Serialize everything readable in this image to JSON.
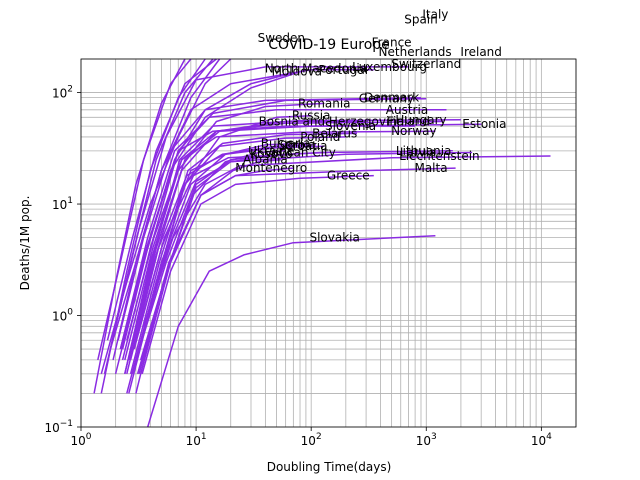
{
  "chart_data": {
    "type": "line",
    "title": "COVID-19  Europe",
    "xlabel": "Doubling Time(days)",
    "ylabel": "Deaths/1M pop.",
    "x_scale": "log",
    "y_scale": "log",
    "xlim": [
      1,
      20000
    ],
    "ylim": [
      0.1,
      200
    ],
    "grid": true,
    "line_color": "#8a2be2",
    "x_ticks": [
      {
        "value": 1,
        "base": "10",
        "exp": "0"
      },
      {
        "value": 10,
        "base": "10",
        "exp": "1"
      },
      {
        "value": 100,
        "base": "10",
        "exp": "2"
      },
      {
        "value": 1000,
        "base": "10",
        "exp": "3"
      },
      {
        "value": 10000,
        "base": "10",
        "exp": "4"
      }
    ],
    "y_ticks": [
      {
        "value": 0.1,
        "base": "10",
        "exp": "−1"
      },
      {
        "value": 1,
        "base": "10",
        "exp": "0"
      },
      {
        "value": 10,
        "base": "10",
        "exp": "1"
      },
      {
        "value": 100,
        "base": "10",
        "exp": "2"
      }
    ],
    "series": [
      {
        "name": "Sweden",
        "label_at": [
          55,
          310
        ],
        "points": [
          [
            1.5,
            0.3
          ],
          [
            2.5,
            2
          ],
          [
            4,
            10
          ],
          [
            7,
            40
          ],
          [
            12,
            120
          ],
          [
            20,
            200
          ]
        ]
      },
      {
        "name": "Italy",
        "label_at": [
          1200,
          500
        ],
        "points": [
          [
            1.3,
            0.2
          ],
          [
            2,
            2
          ],
          [
            3,
            15
          ],
          [
            5,
            80
          ],
          [
            8,
            200
          ]
        ]
      },
      {
        "name": "Spain",
        "label_at": [
          900,
          450
        ],
        "points": [
          [
            1.4,
            0.4
          ],
          [
            2.2,
            3
          ],
          [
            3.5,
            25
          ],
          [
            6,
            120
          ],
          [
            9,
            200
          ]
        ]
      },
      {
        "name": "France",
        "label_at": [
          500,
          280
        ],
        "points": [
          [
            1.5,
            0.2
          ],
          [
            2.5,
            2.5
          ],
          [
            4,
            20
          ],
          [
            7,
            90
          ],
          [
            12,
            200
          ]
        ]
      },
      {
        "name": "Netherlands",
        "label_at": [
          800,
          230
        ],
        "points": [
          [
            1.6,
            0.3
          ],
          [
            2.7,
            3
          ],
          [
            4.5,
            25
          ],
          [
            8,
            100
          ],
          [
            14,
            200
          ]
        ]
      },
      {
        "name": "Ireland",
        "label_at": [
          3000,
          230
        ],
        "points": [
          [
            1.8,
            0.5
          ],
          [
            3,
            3
          ],
          [
            5,
            20
          ],
          [
            9,
            90
          ],
          [
            16,
            200
          ]
        ]
      },
      {
        "name": "Switzerland",
        "label_at": [
          1000,
          180
        ],
        "points": [
          [
            1.7,
            0.6
          ],
          [
            2.8,
            5
          ],
          [
            4.5,
            30
          ],
          [
            8,
            120
          ],
          [
            15,
            200
          ]
        ]
      },
      {
        "name": "Luxembourg",
        "label_at": [
          480,
          170
        ],
        "points": [
          [
            2,
            0.8
          ],
          [
            3.2,
            6
          ],
          [
            5.5,
            40
          ],
          [
            10,
            130
          ],
          [
            40,
            170
          ],
          [
            700,
            170
          ]
        ]
      },
      {
        "name": "Portugal",
        "label_at": [
          190,
          160
        ],
        "points": [
          [
            1.9,
            0.4
          ],
          [
            3,
            3
          ],
          [
            5,
            20
          ],
          [
            9,
            70
          ],
          [
            20,
            120
          ],
          [
            100,
            160
          ],
          [
            350,
            160
          ]
        ]
      },
      {
        "name": "North Macedonia",
        "label_at": [
          110,
          165
        ],
        "points": [
          [
            2,
            0.3
          ],
          [
            3.5,
            3
          ],
          [
            6,
            20
          ],
          [
            12,
            60
          ],
          [
            30,
            110
          ],
          [
            90,
            160
          ]
        ]
      },
      {
        "name": "Moldova",
        "label_at": [
          75,
          155
        ],
        "points": [
          [
            2.2,
            0.5
          ],
          [
            3.7,
            4
          ],
          [
            6.5,
            25
          ],
          [
            12,
            70
          ],
          [
            30,
            120
          ],
          [
            70,
            150
          ]
        ]
      },
      {
        "name": "Denmark",
        "label_at": [
          500,
          90
        ],
        "points": [
          [
            2.1,
            0.6
          ],
          [
            3.5,
            5
          ],
          [
            6,
            30
          ],
          [
            12,
            70
          ],
          [
            40,
            85
          ],
          [
            900,
            90
          ]
        ]
      },
      {
        "name": "Germany",
        "label_at": [
          450,
          88
        ],
        "points": [
          [
            2.3,
            0.4
          ],
          [
            4,
            4
          ],
          [
            7,
            30
          ],
          [
            14,
            65
          ],
          [
            60,
            85
          ],
          [
            1000,
            88
          ]
        ]
      },
      {
        "name": "Romania",
        "label_at": [
          130,
          80
        ],
        "points": [
          [
            2.4,
            0.3
          ],
          [
            4,
            3
          ],
          [
            7,
            20
          ],
          [
            15,
            55
          ],
          [
            40,
            75
          ],
          [
            130,
            80
          ]
        ]
      },
      {
        "name": "Austria",
        "label_at": [
          680,
          70
        ],
        "points": [
          [
            2.2,
            0.5
          ],
          [
            3.8,
            5
          ],
          [
            6.5,
            30
          ],
          [
            13,
            60
          ],
          [
            50,
            70
          ],
          [
            1500,
            70
          ]
        ]
      },
      {
        "name": "Russia",
        "label_at": [
          100,
          62
        ],
        "points": [
          [
            2.5,
            0.2
          ],
          [
            4.5,
            2
          ],
          [
            8,
            15
          ],
          [
            16,
            40
          ],
          [
            50,
            60
          ],
          [
            100,
            62
          ]
        ]
      },
      {
        "name": "Bosnia and Herzegovina",
        "label_at": [
          150,
          55
        ],
        "points": [
          [
            2.4,
            0.4
          ],
          [
            4.2,
            4
          ],
          [
            7.5,
            25
          ],
          [
            15,
            45
          ],
          [
            60,
            55
          ],
          [
            300,
            55
          ]
        ]
      },
      {
        "name": "Slovenia",
        "label_at": [
          220,
          50
        ],
        "points": [
          [
            2.3,
            0.5
          ],
          [
            4,
            5
          ],
          [
            7,
            30
          ],
          [
            14,
            45
          ],
          [
            60,
            50
          ],
          [
            800,
            50
          ]
        ]
      },
      {
        "name": "Finland",
        "label_at": [
          700,
          55
        ],
        "points": [
          [
            2.5,
            0.3
          ],
          [
            4.3,
            3
          ],
          [
            7.5,
            20
          ],
          [
            15,
            45
          ],
          [
            60,
            53
          ],
          [
            1400,
            55
          ]
        ]
      },
      {
        "name": "Hungary",
        "label_at": [
          900,
          57
        ],
        "points": [
          [
            2.4,
            0.3
          ],
          [
            4.1,
            3
          ],
          [
            7.2,
            25
          ],
          [
            14,
            50
          ],
          [
            80,
            56
          ],
          [
            2000,
            57
          ]
        ]
      },
      {
        "name": "Estonia",
        "label_at": [
          3200,
          52
        ],
        "points": [
          [
            2.6,
            0.4
          ],
          [
            4.5,
            4
          ],
          [
            8,
            25
          ],
          [
            16,
            45
          ],
          [
            100,
            50
          ],
          [
            3000,
            52
          ]
        ]
      },
      {
        "name": "Norway",
        "label_at": [
          780,
          45
        ],
        "points": [
          [
            2.5,
            0.6
          ],
          [
            4.3,
            5
          ],
          [
            7.5,
            25
          ],
          [
            15,
            40
          ],
          [
            80,
            44
          ],
          [
            1200,
            45
          ]
        ]
      },
      {
        "name": "Belarus",
        "label_at": [
          160,
          43
        ],
        "points": [
          [
            2.7,
            0.3
          ],
          [
            4.8,
            3
          ],
          [
            8.5,
            20
          ],
          [
            17,
            35
          ],
          [
            60,
            42
          ],
          [
            250,
            43
          ]
        ]
      },
      {
        "name": "Poland",
        "label_at": [
          120,
          40
        ],
        "points": [
          [
            2.6,
            0.2
          ],
          [
            4.6,
            2
          ],
          [
            8,
            15
          ],
          [
            16,
            33
          ],
          [
            60,
            39
          ],
          [
            200,
            40
          ]
        ]
      },
      {
        "name": "Bulgaria",
        "label_at": [
          60,
          35
        ],
        "points": [
          [
            2.8,
            0.3
          ],
          [
            5,
            3
          ],
          [
            9,
            15
          ],
          [
            18,
            28
          ],
          [
            40,
            34
          ],
          [
            90,
            35
          ]
        ]
      },
      {
        "name": "Serbia",
        "label_at": [
          75,
          34
        ],
        "points": [
          [
            2.7,
            0.4
          ],
          [
            4.7,
            4
          ],
          [
            8.3,
            18
          ],
          [
            17,
            28
          ],
          [
            50,
            33
          ],
          [
            110,
            34
          ]
        ]
      },
      {
        "name": "Croatia",
        "label_at": [
          90,
          33
        ],
        "points": [
          [
            2.9,
            0.5
          ],
          [
            5,
            4
          ],
          [
            9,
            20
          ],
          [
            18,
            28
          ],
          [
            50,
            32
          ],
          [
            130,
            33
          ]
        ]
      },
      {
        "name": "Ukraine",
        "label_at": [
          45,
          30
        ],
        "points": [
          [
            3,
            0.2
          ],
          [
            5.2,
            2
          ],
          [
            9.3,
            12
          ],
          [
            18,
            24
          ],
          [
            35,
            29
          ],
          [
            60,
            30
          ]
        ]
      },
      {
        "name": "Vatican City",
        "label_at": [
          80,
          29
        ],
        "points": [
          [
            3,
            0.4
          ],
          [
            5.5,
            3
          ],
          [
            10,
            15
          ],
          [
            20,
            25
          ],
          [
            60,
            28
          ],
          [
            140,
            29
          ]
        ]
      },
      {
        "name": "Kosovo",
        "label_at": [
          45,
          28
        ],
        "points": [
          [
            3.1,
            0.3
          ],
          [
            5.6,
            2.5
          ],
          [
            10,
            14
          ],
          [
            20,
            24
          ],
          [
            45,
            27
          ],
          [
            70,
            28
          ]
        ]
      },
      {
        "name": "Albania",
        "label_at": [
          40,
          25
        ],
        "points": [
          [
            3.2,
            0.3
          ],
          [
            5.8,
            3
          ],
          [
            11,
            12
          ],
          [
            21,
            20
          ],
          [
            35,
            24
          ],
          [
            55,
            25
          ]
        ]
      },
      {
        "name": "Montenegro",
        "label_at": [
          45,
          21
        ],
        "points": [
          [
            3.3,
            0.3
          ],
          [
            6,
            3
          ],
          [
            11,
            12
          ],
          [
            22,
            18
          ],
          [
            40,
            20
          ],
          [
            70,
            21
          ]
        ]
      },
      {
        "name": "Lithuania",
        "label_at": [
          950,
          30
        ],
        "points": [
          [
            3,
            0.6
          ],
          [
            5.3,
            5
          ],
          [
            9.5,
            18
          ],
          [
            19,
            26
          ],
          [
            120,
            29
          ],
          [
            1700,
            30
          ]
        ]
      },
      {
        "name": "Latvia",
        "label_at": [
          850,
          29
        ],
        "points": [
          [
            3.2,
            0.5
          ],
          [
            5.7,
            4
          ],
          [
            10,
            16
          ],
          [
            20,
            24
          ],
          [
            200,
            28
          ],
          [
            2500,
            29
          ]
        ]
      },
      {
        "name": "Liechtenstein",
        "label_at": [
          1300,
          27
        ],
        "points": [
          [
            3.5,
            0.8
          ],
          [
            6.3,
            5
          ],
          [
            12,
            15
          ],
          [
            24,
            22
          ],
          [
            500,
            26
          ],
          [
            12000,
            27
          ]
        ]
      },
      {
        "name": "Malta",
        "label_at": [
          1100,
          21
        ],
        "points": [
          [
            3.3,
            0.4
          ],
          [
            5.9,
            3
          ],
          [
            11,
            12
          ],
          [
            22,
            18
          ],
          [
            300,
            20
          ],
          [
            1800,
            21
          ]
        ]
      },
      {
        "name": "Greece",
        "label_at": [
          210,
          18
        ],
        "points": [
          [
            3.4,
            0.3
          ],
          [
            6,
            2.5
          ],
          [
            11,
            10
          ],
          [
            22,
            15
          ],
          [
            80,
            17
          ],
          [
            350,
            18
          ]
        ]
      },
      {
        "name": "Slovakia",
        "label_at": [
          160,
          5
        ],
        "points": [
          [
            3.8,
            0.1
          ],
          [
            7,
            0.8
          ],
          [
            13,
            2.5
          ],
          [
            26,
            3.5
          ],
          [
            70,
            4.5
          ],
          [
            1200,
            5.2
          ]
        ]
      }
    ]
  }
}
